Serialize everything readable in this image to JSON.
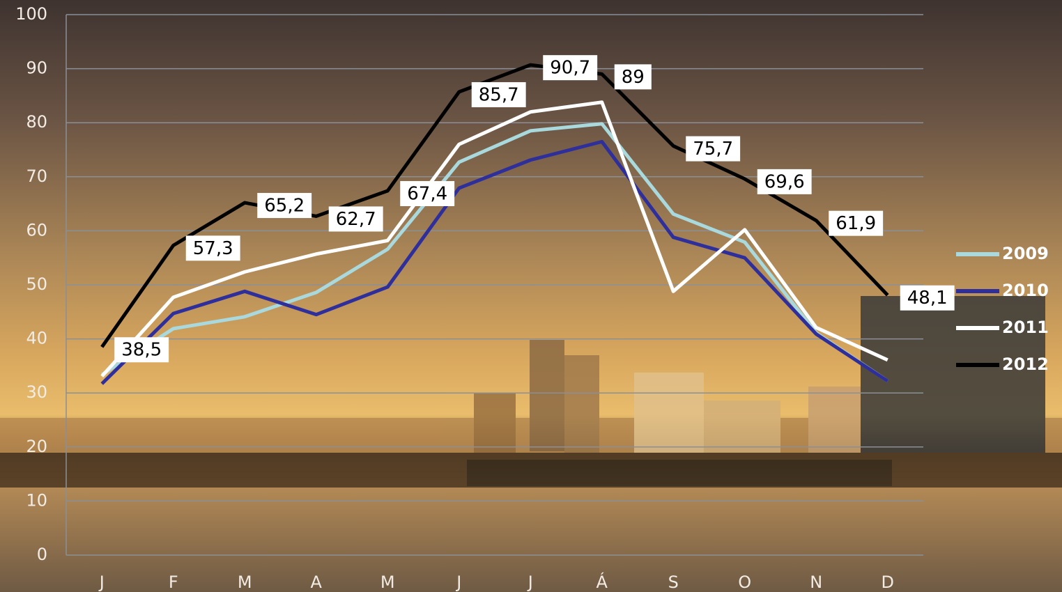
{
  "chart_data": {
    "type": "line",
    "categories": [
      "J",
      "F",
      "M",
      "A",
      "M",
      "J",
      "J",
      "Á",
      "S",
      "O",
      "N",
      "D"
    ],
    "series": [
      {
        "name": "2009",
        "color": "#a9d9dd",
        "values": [
          33.4,
          41.9,
          44.1,
          48.6,
          56.6,
          72.7,
          78.5,
          79.8,
          63.1,
          57.9,
          41.1,
          32.2
        ]
      },
      {
        "name": "2010",
        "color": "#2f2f9c",
        "values": [
          31.7,
          44.7,
          48.8,
          44.5,
          49.6,
          67.9,
          73.1,
          76.5,
          58.8,
          55.0,
          40.9,
          32.2
        ]
      },
      {
        "name": "2011",
        "color": "#ffffff",
        "values": [
          33.1,
          47.7,
          52.4,
          55.7,
          58.2,
          76.0,
          82.0,
          83.8,
          48.8,
          60.2,
          42.1,
          36.1
        ]
      },
      {
        "name": "2012",
        "color": "#000000",
        "values": [
          38.5,
          57.3,
          65.2,
          62.7,
          67.4,
          85.7,
          90.7,
          89,
          75.7,
          69.6,
          61.9,
          48.1
        ],
        "value_labels": [
          "38,5",
          "57,3",
          "65,2",
          "62,7",
          "67,4",
          "85,7",
          "90,7",
          "89",
          "75,7",
          "69,6",
          "61,9",
          "48,1"
        ]
      }
    ],
    "ylim": [
      0,
      100
    ],
    "yticks": [
      0,
      10,
      20,
      30,
      40,
      50,
      60,
      70,
      80,
      90,
      100
    ],
    "grid": true,
    "legend": "right"
  }
}
